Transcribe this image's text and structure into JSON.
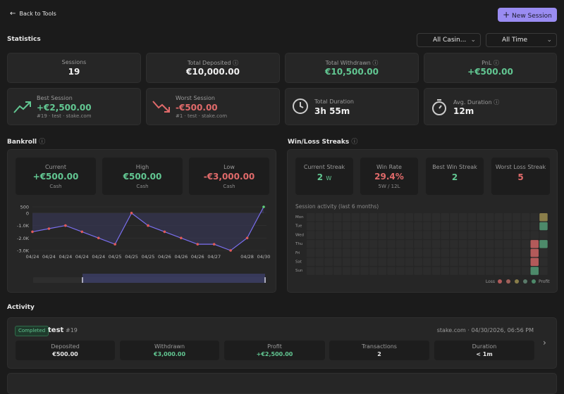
{
  "header": {
    "back": "Back to Tools",
    "new_session": "New Session"
  },
  "statistics": {
    "title": "Statistics",
    "filters": [
      "All Casin...",
      "All Time"
    ],
    "cards": [
      {
        "label": "Sessions",
        "value": "19"
      },
      {
        "label": "Total Deposited",
        "value": "€10,000.00"
      },
      {
        "label": "Total Withdrawn",
        "value": "€10,500.00"
      },
      {
        "label": "PnL",
        "value": "+€500.00"
      }
    ],
    "best": {
      "label": "Best Session",
      "value": "+€2,500.00",
      "sub": "#19 · test · stake.com"
    },
    "worst": {
      "label": "Worst Session",
      "value": "-€500.00",
      "sub": "#1 · test · stake.com"
    },
    "duration": {
      "label": "Total Duration",
      "value": "3h 55m"
    },
    "avg": {
      "label": "Avg. Duration",
      "value": "12m"
    }
  },
  "bankroll": {
    "title": "Bankroll",
    "stats": [
      {
        "label": "Current",
        "value": "+€500.00",
        "sub": "Cash"
      },
      {
        "label": "High",
        "value": "€500.00",
        "sub": "Cash"
      },
      {
        "label": "Low",
        "value": "-€3,000.00",
        "sub": "Cash"
      }
    ],
    "chart": {
      "type": "line",
      "categories": [
        "04/24",
        "04/24",
        "04/24",
        "04/24",
        "04/24",
        "04/25",
        "04/25",
        "04/25",
        "04/26",
        "04/26",
        "04/26",
        "04/27",
        null,
        "04/28",
        "04/30"
      ],
      "values": [
        -1500,
        -1250,
        -1000,
        -1500,
        -2000,
        -2500,
        0,
        -1000,
        -1500,
        -2000,
        -2500,
        -2500,
        -3000,
        -2000,
        500
      ],
      "color": "#7b6ff0",
      "point_color": "#e05a5a",
      "last_point_color": "#5fd07a",
      "ylim": [
        -3000,
        500
      ],
      "yticks": [
        {
          "value": 500,
          "label": "500"
        },
        0,
        {
          "value": -1000,
          "label": "-1.0K"
        },
        {
          "value": -2000,
          "label": "-2.0K"
        },
        {
          "value": -3000,
          "label": "-3.0K"
        }
      ]
    }
  },
  "streaks": {
    "title": "Win/Loss Streaks",
    "cards": [
      {
        "label": "Current Streak",
        "value": "2",
        "unit": "W"
      },
      {
        "label": "Win Rate",
        "value": "29.4%",
        "sub": "5W / 12L"
      },
      {
        "label": "Best Win Streak",
        "value": "2"
      },
      {
        "label": "Worst Loss Streak",
        "value": "5"
      }
    ],
    "activity_title": "Session activity (last 6 months)",
    "days": [
      "Mon",
      "Tue",
      "Wed",
      "Thu",
      "Fri",
      "Sat",
      "Sun"
    ],
    "legend": {
      "loss": "Loss",
      "profit": "Profit"
    }
  },
  "activity": {
    "title": "Activity",
    "session": {
      "status": "Completed",
      "name": "test",
      "id": "#19",
      "meta": "stake.com · 04/30/2026, 06:56 PM",
      "fields": [
        {
          "label": "Deposited",
          "value": "€500.00"
        },
        {
          "label": "Withdrawn",
          "value": "€3,000.00"
        },
        {
          "label": "Profit",
          "value": "+€2,500.00"
        },
        {
          "label": "Transactions",
          "value": "2"
        },
        {
          "label": "Duration",
          "value": "< 1m"
        }
      ]
    }
  }
}
